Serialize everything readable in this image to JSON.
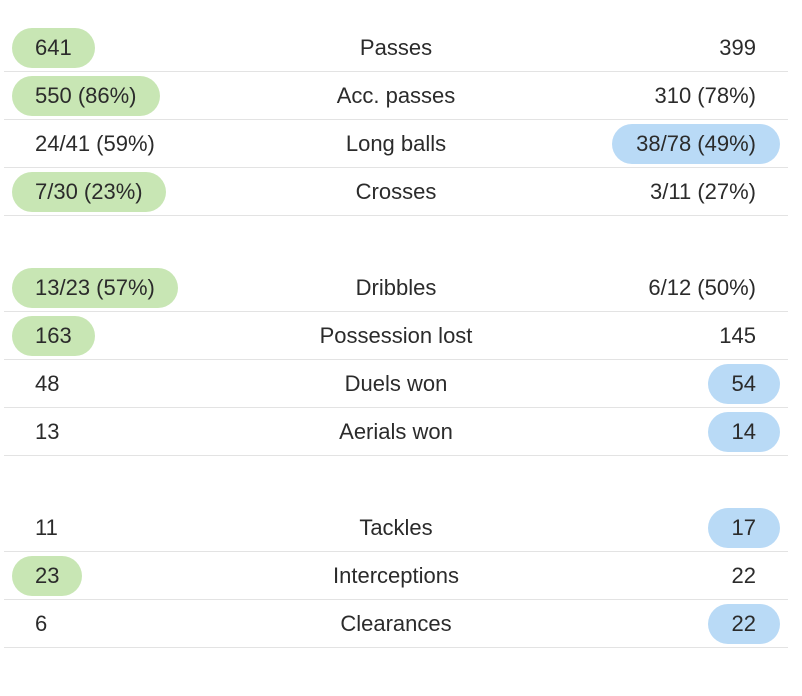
{
  "colors": {
    "home_highlight": "#c8e6b4",
    "away_highlight": "#b9daf6",
    "divider": "#e3e3e3",
    "text": "#2b2b2b"
  },
  "groups": [
    {
      "rows": [
        {
          "label": "Passes",
          "home": "641",
          "away": "399",
          "highlight": "home"
        },
        {
          "label": "Acc. passes",
          "home": "550 (86%)",
          "away": "310 (78%)",
          "highlight": "home"
        },
        {
          "label": "Long balls",
          "home": "24/41 (59%)",
          "away": "38/78 (49%)",
          "highlight": "away"
        },
        {
          "label": "Crosses",
          "home": "7/30 (23%)",
          "away": "3/11 (27%)",
          "highlight": "home"
        }
      ]
    },
    {
      "rows": [
        {
          "label": "Dribbles",
          "home": "13/23 (57%)",
          "away": "6/12 (50%)",
          "highlight": "home"
        },
        {
          "label": "Possession lost",
          "home": "163",
          "away": "145",
          "highlight": "home"
        },
        {
          "label": "Duels won",
          "home": "48",
          "away": "54",
          "highlight": "away"
        },
        {
          "label": "Aerials won",
          "home": "13",
          "away": "14",
          "highlight": "away"
        }
      ]
    },
    {
      "rows": [
        {
          "label": "Tackles",
          "home": "11",
          "away": "17",
          "highlight": "away"
        },
        {
          "label": "Interceptions",
          "home": "23",
          "away": "22",
          "highlight": "home"
        },
        {
          "label": "Clearances",
          "home": "6",
          "away": "22",
          "highlight": "away"
        }
      ]
    }
  ]
}
